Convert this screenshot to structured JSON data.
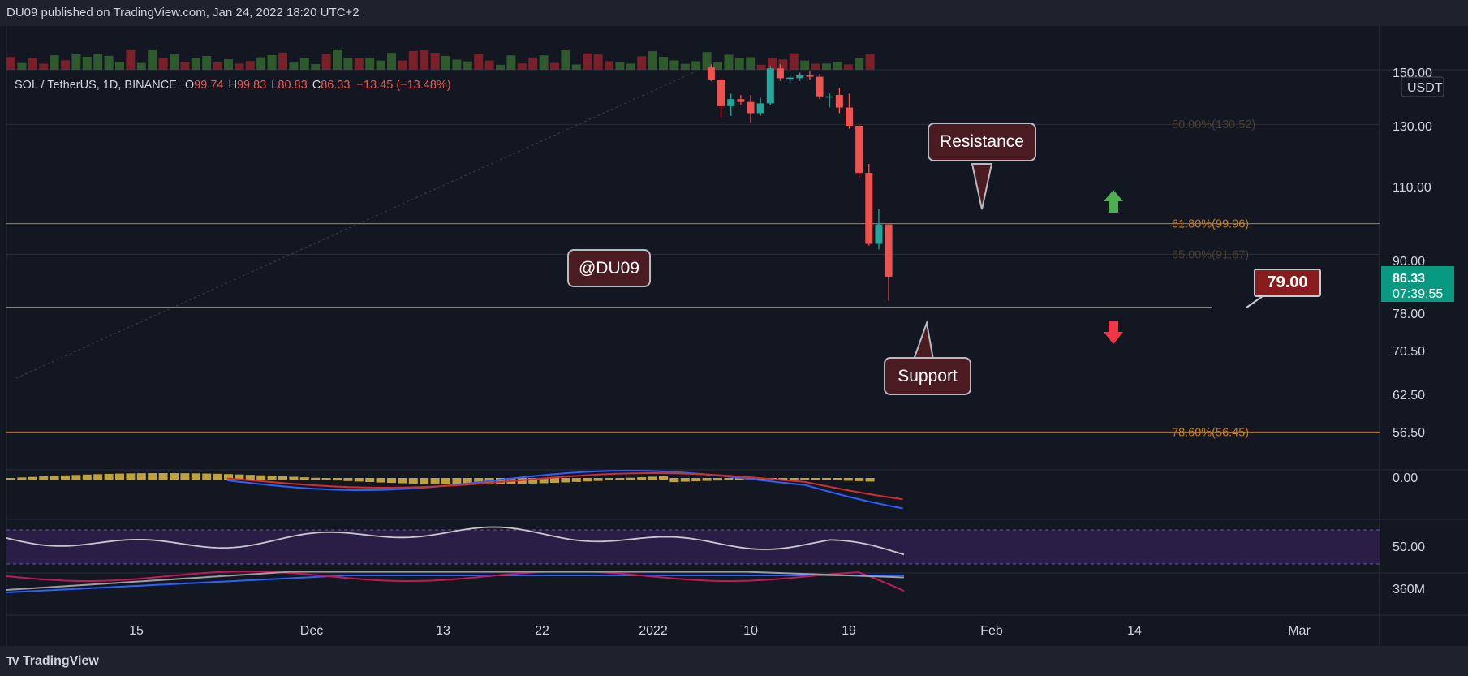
{
  "header": {
    "publisher_line": "DU09 published on TradingView.com, Jan 24, 2022 18:20 UTC+2"
  },
  "footer": {
    "brand": "TradingView"
  },
  "legend": {
    "symbol": "SOL / TetherUS, 1D, BINANCE",
    "open_label": "O",
    "open": "99.74",
    "high_label": "H",
    "high": "99.83",
    "low_label": "L",
    "low": "80.83",
    "close_label": "C",
    "close": "86.33",
    "change": "−13.45 (−13.48%)"
  },
  "annotations": {
    "resistance": "Resistance",
    "support": "Support",
    "watermark": "@DU09",
    "price_tag": "79.00"
  },
  "price_axis": {
    "unit": "USDT",
    "top_partial": "150.00",
    "current_price": "86.33",
    "countdown": "07:39:55",
    "macd_zero": "0.00",
    "rsi_mid": "50.00",
    "volume_label": "360M"
  },
  "colors": {
    "background": "#131722",
    "up": "#26a69a",
    "down": "#ef5350",
    "fib": "#c77d1a",
    "macd_line": "#2962ff",
    "signal_line": "#d32f2f",
    "histogram": "#bfa23a",
    "rsi_line": "#c7c7cc",
    "rsi_band": "#2a1e47"
  },
  "chart_data": {
    "type": "candlestick",
    "title": "SOL / TetherUS, 1D, BINANCE",
    "y_ticks": [
      "130.00",
      "110.00",
      "90.00",
      "78.00",
      "70.50",
      "62.50",
      "56.50"
    ],
    "x_ticks": [
      "15",
      "Dec",
      "13",
      "22",
      "2022",
      "10",
      "19",
      "Feb",
      "14",
      "Mar"
    ],
    "fib_levels": [
      {
        "label": "50.00%(130.52)",
        "value": 130.52
      },
      {
        "label": "61.80%(99.96)",
        "value": 99.96
      },
      {
        "label": "65.00%(91.67)",
        "value": 91.67
      },
      {
        "label": "78.60%(56.45)",
        "value": 56.45
      }
    ],
    "support_level": 79.0,
    "candles": [
      {
        "date": "2022-01-06",
        "o": 150.8,
        "h": 152.0,
        "l": 146.0,
        "c": 146.5
      },
      {
        "date": "2022-01-07",
        "o": 146.5,
        "h": 147.0,
        "l": 133.0,
        "c": 137.0
      },
      {
        "date": "2022-01-08",
        "o": 137.0,
        "h": 141.5,
        "l": 133.5,
        "c": 139.5
      },
      {
        "date": "2022-01-09",
        "o": 139.5,
        "h": 141.0,
        "l": 137.5,
        "c": 138.5
      },
      {
        "date": "2022-01-10",
        "o": 138.5,
        "h": 141.0,
        "l": 131.0,
        "c": 134.5
      },
      {
        "date": "2022-01-11",
        "o": 134.5,
        "h": 140.0,
        "l": 133.5,
        "c": 138.0
      },
      {
        "date": "2022-01-12",
        "o": 138.0,
        "h": 151.5,
        "l": 137.5,
        "c": 150.5
      },
      {
        "date": "2022-01-13",
        "o": 150.5,
        "h": 152.0,
        "l": 146.0,
        "c": 147.0
      },
      {
        "date": "2022-01-14",
        "o": 146.8,
        "h": 148.5,
        "l": 145.0,
        "c": 147.2
      },
      {
        "date": "2022-01-15",
        "o": 147.0,
        "h": 149.0,
        "l": 146.0,
        "c": 148.0
      },
      {
        "date": "2022-01-16",
        "o": 148.0,
        "h": 149.5,
        "l": 146.5,
        "c": 147.5
      },
      {
        "date": "2022-01-17",
        "o": 147.5,
        "h": 148.5,
        "l": 139.5,
        "c": 140.5
      },
      {
        "date": "2022-01-18",
        "o": 140.5,
        "h": 141.5,
        "l": 136.5,
        "c": 140.5
      },
      {
        "date": "2022-01-19",
        "o": 141.0,
        "h": 143.5,
        "l": 134.5,
        "c": 136.5
      },
      {
        "date": "2022-01-20",
        "o": 136.5,
        "h": 141.5,
        "l": 129.0,
        "c": 130.0
      },
      {
        "date": "2022-01-21",
        "o": 130.0,
        "h": 130.5,
        "l": 113.0,
        "c": 114.5
      },
      {
        "date": "2022-01-22",
        "o": 114.5,
        "h": 117.5,
        "l": 94.0,
        "c": 94.5
      },
      {
        "date": "2022-01-23",
        "o": 94.5,
        "h": 104.0,
        "l": 93.0,
        "c": 99.74
      },
      {
        "date": "2022-01-24",
        "o": 99.74,
        "h": 99.83,
        "l": 80.83,
        "c": 86.33
      }
    ],
    "indicators": [
      "Volume",
      "MACD",
      "RSI",
      "On-balance volume"
    ]
  }
}
